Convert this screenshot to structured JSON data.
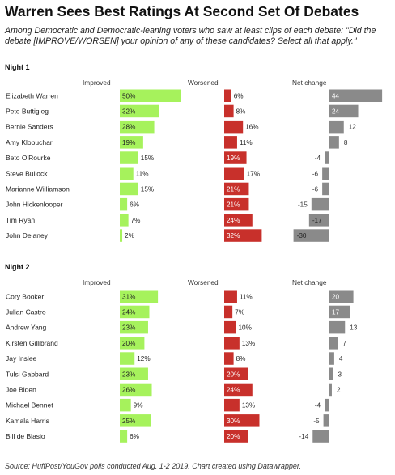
{
  "title": "Warren Sees Best Ratings At Second Set Of Debates",
  "subtitle": "Among Democratic and Democratic-leaning voters who saw at least clips of each debate: \"Did the debate [IMPROVE/WORSEN] your opinion of any of these candidates? Select all that apply.\"",
  "source": "Source: HuffPost/YouGov polls conducted Aug. 1-2 2019. Chart created using Datawrapper.",
  "colors": {
    "improved": "#a6f25c",
    "worsened": "#c8302b",
    "net": "#8a8a8a"
  },
  "chart_data": [
    {
      "type": "bar",
      "title": "Night 1",
      "column_labels": [
        "Improved",
        "Worsened",
        "Net change"
      ],
      "categories": [
        "Elizabeth Warren",
        "Pete Buttigieg",
        "Bernie Sanders",
        "Amy Klobuchar",
        "Beto O'Rourke",
        "Steve Bullock",
        "Marianne Williamson",
        "John Hickenlooper",
        "Tim Ryan",
        "John Delaney"
      ],
      "series": [
        {
          "name": "Improved",
          "values": [
            50,
            32,
            28,
            19,
            15,
            11,
            15,
            6,
            7,
            2
          ],
          "labels": [
            "50%",
            "32%",
            "28%",
            "19%",
            "15%",
            "11%",
            "15%",
            "6%",
            "7%",
            "2%"
          ]
        },
        {
          "name": "Worsened",
          "values": [
            6,
            8,
            16,
            11,
            19,
            17,
            21,
            21,
            24,
            32
          ],
          "labels": [
            "6%",
            "8%",
            "16%",
            "11%",
            "19%",
            "17%",
            "21%",
            "21%",
            "24%",
            "32%"
          ]
        },
        {
          "name": "Net change",
          "values": [
            44,
            24,
            12,
            8,
            -4,
            -6,
            -6,
            -15,
            -17,
            -30
          ],
          "labels": [
            "44",
            "24",
            "12",
            "8",
            "-4",
            "-6",
            "-6",
            "-15",
            "-17",
            "-30"
          ]
        }
      ]
    },
    {
      "type": "bar",
      "title": "Night 2",
      "column_labels": [
        "Improved",
        "Worsened",
        "Net change"
      ],
      "categories": [
        "Cory Booker",
        "Julian Castro",
        "Andrew Yang",
        "Kirsten Gillibrand",
        "Jay Inslee",
        "Tulsi Gabbard",
        "Joe Biden",
        "Michael Bennet",
        "Kamala Harris",
        "Bill de Blasio"
      ],
      "series": [
        {
          "name": "Improved",
          "values": [
            31,
            24,
            23,
            20,
            12,
            23,
            26,
            9,
            25,
            6
          ],
          "labels": [
            "31%",
            "24%",
            "23%",
            "20%",
            "12%",
            "23%",
            "26%",
            "9%",
            "25%",
            "6%"
          ]
        },
        {
          "name": "Worsened",
          "values": [
            11,
            7,
            10,
            13,
            8,
            20,
            24,
            13,
            30,
            20
          ],
          "labels": [
            "11%",
            "7%",
            "10%",
            "13%",
            "8%",
            "20%",
            "24%",
            "13%",
            "30%",
            "20%"
          ]
        },
        {
          "name": "Net change",
          "values": [
            20,
            17,
            13,
            7,
            4,
            3,
            2,
            -4,
            -5,
            -14
          ],
          "labels": [
            "20",
            "17",
            "13",
            "7",
            "4",
            "3",
            "2",
            "-4",
            "-5",
            "-14"
          ]
        }
      ]
    }
  ]
}
